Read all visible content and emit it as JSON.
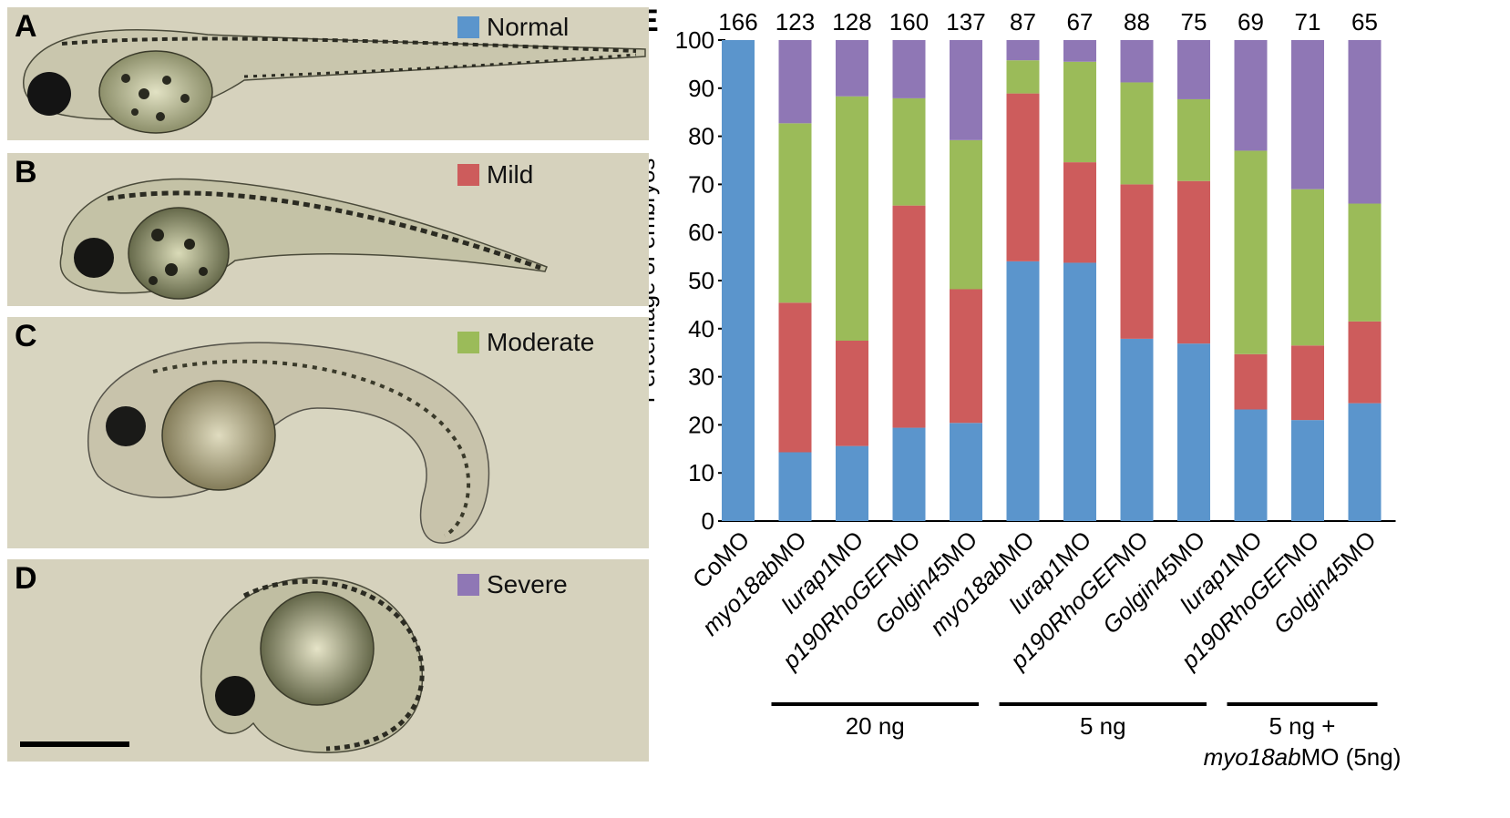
{
  "panels": [
    {
      "letter": "A",
      "legend_label": "Normal",
      "legend_color": "#5b95cc"
    },
    {
      "letter": "B",
      "legend_label": "Mild",
      "legend_color": "#cd5c5c"
    },
    {
      "letter": "C",
      "legend_label": "Moderate",
      "legend_color": "#9bbb59"
    },
    {
      "letter": "D",
      "legend_label": "Severe",
      "legend_color": "#8f77b5"
    }
  ],
  "chart_panel_letter": "E",
  "chart_data": {
    "type": "bar",
    "stacked": true,
    "title": "",
    "xlabel": "",
    "ylabel": "Percentage of embryos",
    "ylim": [
      0,
      100
    ],
    "yticks": [
      0,
      10,
      20,
      30,
      40,
      50,
      60,
      70,
      80,
      90,
      100
    ],
    "grid": false,
    "categories": [
      {
        "prefix": "",
        "italic": "",
        "suffix": "CoMO"
      },
      {
        "prefix": "",
        "italic": "myo18ab",
        "suffix": "MO"
      },
      {
        "prefix": "",
        "italic": "lurap1",
        "suffix": "MO"
      },
      {
        "prefix": "",
        "italic": "p190RhoGEF",
        "suffix": "MO"
      },
      {
        "prefix": "",
        "italic": "Golgin45",
        "suffix": "MO"
      },
      {
        "prefix": "",
        "italic": "myo18ab",
        "suffix": "MO"
      },
      {
        "prefix": "",
        "italic": "lurap1",
        "suffix": "MO"
      },
      {
        "prefix": "",
        "italic": "p190RhoGEF",
        "suffix": "MO"
      },
      {
        "prefix": "",
        "italic": "Golgin45",
        "suffix": "MO"
      },
      {
        "prefix": "",
        "italic": "lurap1",
        "suffix": "MO"
      },
      {
        "prefix": "",
        "italic": "p190RhoGEF",
        "suffix": "MO"
      },
      {
        "prefix": "",
        "italic": "Golgin45",
        "suffix": "MO"
      }
    ],
    "n_labels": [
      "166",
      "123",
      "128",
      "160",
      "137",
      "87",
      "67",
      "88",
      "75",
      "69",
      "71",
      "65"
    ],
    "series": [
      {
        "name": "Normal",
        "color": "#5b95cc",
        "values": [
          100,
          14.3,
          15.6,
          19.4,
          20.4,
          54.0,
          53.7,
          37.9,
          36.9,
          23.2,
          21.0,
          24.5
        ]
      },
      {
        "name": "Mild",
        "color": "#cd5c5c",
        "values": [
          0,
          31.1,
          21.9,
          46.2,
          27.8,
          34.9,
          20.9,
          32.1,
          33.8,
          11.5,
          15.5,
          17.0
        ]
      },
      {
        "name": "Moderate",
        "color": "#9bbb59",
        "values": [
          0,
          37.3,
          50.8,
          22.3,
          31.0,
          6.9,
          20.9,
          21.2,
          17.0,
          42.3,
          32.5,
          24.5
        ]
      },
      {
        "name": "Severe",
        "color": "#8f77b5",
        "values": [
          0,
          17.3,
          11.7,
          12.1,
          20.8,
          4.2,
          4.5,
          8.8,
          12.3,
          23.0,
          31.0,
          34.0
        ]
      }
    ],
    "groups": [
      {
        "label_lines": [
          {
            "text": "20 ng"
          }
        ],
        "from": 1,
        "to": 4
      },
      {
        "label_lines": [
          {
            "text": "5 ng"
          }
        ],
        "from": 5,
        "to": 8
      },
      {
        "label_lines": [
          {
            "text": "5 ng +"
          },
          {
            "italic": "myo18ab",
            "suffix": "MO (5ng)"
          }
        ],
        "from": 9,
        "to": 11
      }
    ]
  }
}
